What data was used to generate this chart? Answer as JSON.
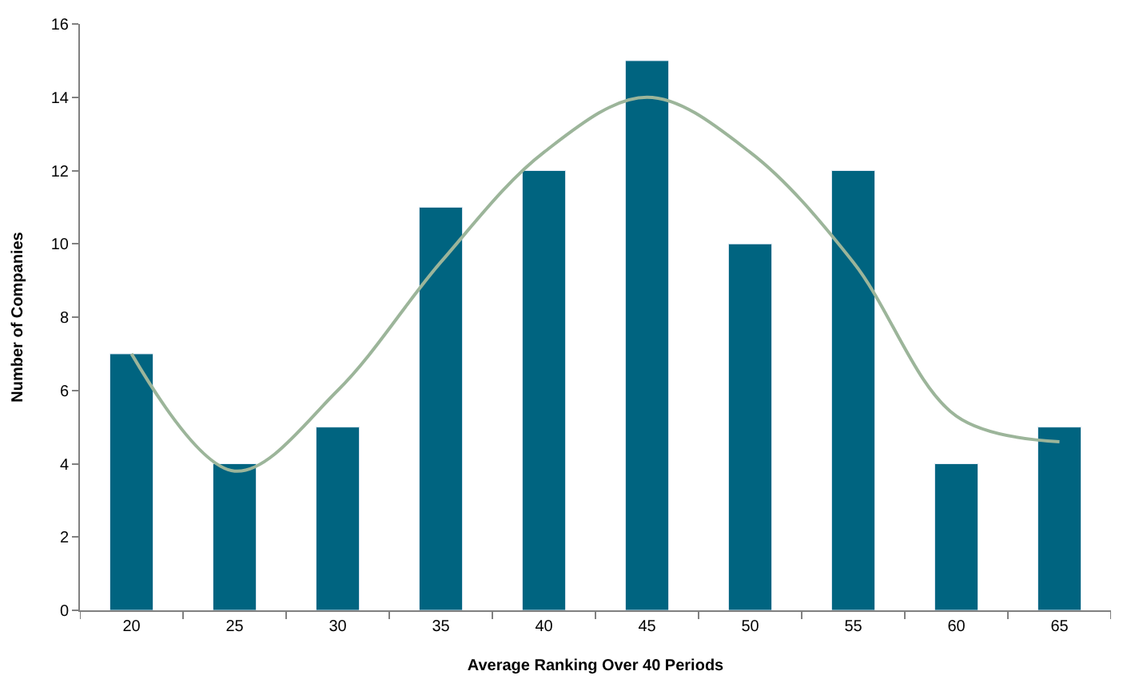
{
  "chart_data": {
    "type": "bar",
    "xlabel": "Average Ranking Over 40 Periods",
    "ylabel": "Number of Companies",
    "categories": [
      "20",
      "25",
      "30",
      "35",
      "40",
      "45",
      "50",
      "55",
      "60",
      "65"
    ],
    "series": [
      {
        "color": "#006480",
        "values": [
          7,
          4,
          5,
          11,
          12,
          15,
          10,
          12,
          4,
          5
        ]
      },
      {
        "type": "line",
        "color": "#9cb59a",
        "values": [
          7,
          3.8,
          6,
          9.5,
          12.5,
          14,
          12.5,
          9.5,
          5.3,
          4.6
        ]
      }
    ],
    "ylim": [
      0,
      16
    ],
    "yticks": [
      0,
      2,
      4,
      6,
      8,
      10,
      12,
      14,
      16
    ],
    "grid": false,
    "legend": false
  }
}
